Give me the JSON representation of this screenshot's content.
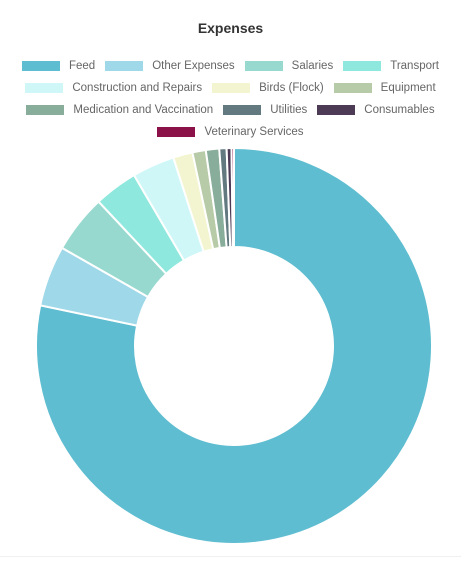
{
  "chart_data": {
    "type": "pie",
    "subtype": "doughnut",
    "title": "Expenses",
    "legend_position": "top",
    "categories": [
      "Feed",
      "Other Expenses",
      "Salaries",
      "Transport",
      "Construction and Repairs",
      "Birds (Flock)",
      "Equipment",
      "Medication and Vaccination",
      "Utilities",
      "Consumables",
      "Veterinary Services"
    ],
    "values": [
      79.0,
      5.0,
      4.8,
      3.6,
      3.5,
      1.6,
      1.1,
      1.1,
      0.6,
      0.4,
      0.2
    ],
    "colors": [
      "#5ebdd0",
      "#9fd8e8",
      "#98d9cf",
      "#8fe8de",
      "#d0f7f8",
      "#f2f5cf",
      "#b7cba8",
      "#88ad9a",
      "#637980",
      "#4d3b56",
      "#8a1248"
    ]
  }
}
